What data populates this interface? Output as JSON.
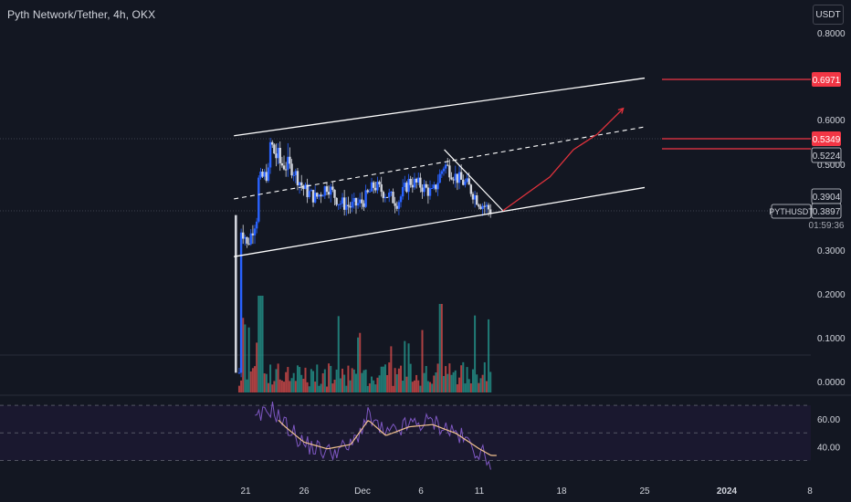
{
  "header": {
    "title": "Pyth Network/Tether, 4h, OKX",
    "currency_button": "USDT"
  },
  "colors": {
    "background": "#131722",
    "up": "#2962ff",
    "down": "#d1d4dc",
    "channel": "#ffffff",
    "projection": "#e0323c",
    "label_red": "#f23645",
    "vol_up": "#26a69a",
    "vol_down": "#ef5350",
    "rsi_line": "#7e57c2",
    "rsi_ma": "#f2c28f",
    "rsi_band": "#201a3b",
    "text": "#d1d4dc"
  },
  "chart_data": [
    {
      "type": "line",
      "title": "Pyth Network/Tether, 4h, OKX",
      "symbol": "PYTHUSDT",
      "y_ticks": [
        "0.8000",
        "0.6000",
        "0.5000",
        "0.3000",
        "0.2000",
        "0.1000",
        "0.0000"
      ],
      "x_ticks": [
        "21",
        "26",
        "Dec",
        "6",
        "11",
        "18",
        "25",
        "2024",
        "8"
      ],
      "ylim": [
        0,
        0.84
      ],
      "grid": false,
      "price_labels": [
        {
          "text": "0.6971",
          "value": 0.6971,
          "style": "red"
        },
        {
          "text": "0.5349",
          "value": 0.5349,
          "style": "red"
        },
        {
          "text": "0.5224",
          "value": 0.5224,
          "style": "outline"
        },
        {
          "text": "0.3904",
          "value": 0.3904,
          "style": "outline"
        },
        {
          "text": "0.3897",
          "value": 0.3897,
          "style": "outline"
        }
      ],
      "countdown": "01:59:36",
      "close_series": [
        {
          "x": "Nov 20",
          "y": 0.02
        },
        {
          "x": "Nov 20",
          "y": 0.38
        },
        {
          "x": "Nov 21",
          "y": 0.33
        },
        {
          "x": "Nov 21",
          "y": 0.3
        },
        {
          "x": "Nov 22",
          "y": 0.38
        },
        {
          "x": "Nov 22",
          "y": 0.46
        },
        {
          "x": "Nov 23",
          "y": 0.48
        },
        {
          "x": "Nov 23",
          "y": 0.53
        },
        {
          "x": "Nov 24",
          "y": 0.5
        },
        {
          "x": "Nov 25",
          "y": 0.49
        },
        {
          "x": "Nov 26",
          "y": 0.44
        },
        {
          "x": "Nov 27",
          "y": 0.42
        },
        {
          "x": "Nov 28",
          "y": 0.45
        },
        {
          "x": "Nov 29",
          "y": 0.41
        },
        {
          "x": "Nov 30",
          "y": 0.4
        },
        {
          "x": "Dec 1",
          "y": 0.41
        },
        {
          "x": "Dec 2",
          "y": 0.45
        },
        {
          "x": "Dec 3",
          "y": 0.43
        },
        {
          "x": "Dec 4",
          "y": 0.41
        },
        {
          "x": "Dec 5",
          "y": 0.46
        },
        {
          "x": "Dec 6",
          "y": 0.45
        },
        {
          "x": "Dec 7",
          "y": 0.43
        },
        {
          "x": "Dec 8",
          "y": 0.5
        },
        {
          "x": "Dec 9",
          "y": 0.47
        },
        {
          "x": "Dec 10",
          "y": 0.45
        },
        {
          "x": "Dec 11",
          "y": 0.41
        },
        {
          "x": "Dec 12",
          "y": 0.39
        }
      ],
      "drawings": {
        "channel_top": [
          {
            "x": "Nov 20",
            "y": 0.545
          },
          {
            "x": "Dec 25",
            "y": 0.7
          }
        ],
        "channel_bottom": [
          {
            "x": "Nov 20",
            "y": 0.285
          },
          {
            "x": "Dec 25",
            "y": 0.445
          }
        ],
        "channel_mid": [
          {
            "x": "Nov 20",
            "y": 0.418
          },
          {
            "x": "Dec 25",
            "y": 0.575
          }
        ],
        "triangle_top": [
          {
            "x": "Dec 8",
            "y": 0.52
          },
          {
            "x": "Dec 13",
            "y": 0.39
          }
        ],
        "projection_path": [
          {
            "x": "Dec 13",
            "y": 0.39
          },
          {
            "x": "Dec 15",
            "y": 0.43
          },
          {
            "x": "Dec 17",
            "y": 0.47
          },
          {
            "x": "Dec 19",
            "y": 0.52
          },
          {
            "x": "Dec 21",
            "y": 0.55
          },
          {
            "x": "Dec 22",
            "y": 0.59
          }
        ]
      }
    },
    {
      "type": "bar",
      "title": "",
      "name": "volume",
      "ylim": [
        0,
        1
      ]
    },
    {
      "type": "line",
      "title": "",
      "name": "RSI",
      "y_ticks": [
        "60.00",
        "40.00"
      ],
      "ylim": [
        25,
        75
      ]
    }
  ]
}
